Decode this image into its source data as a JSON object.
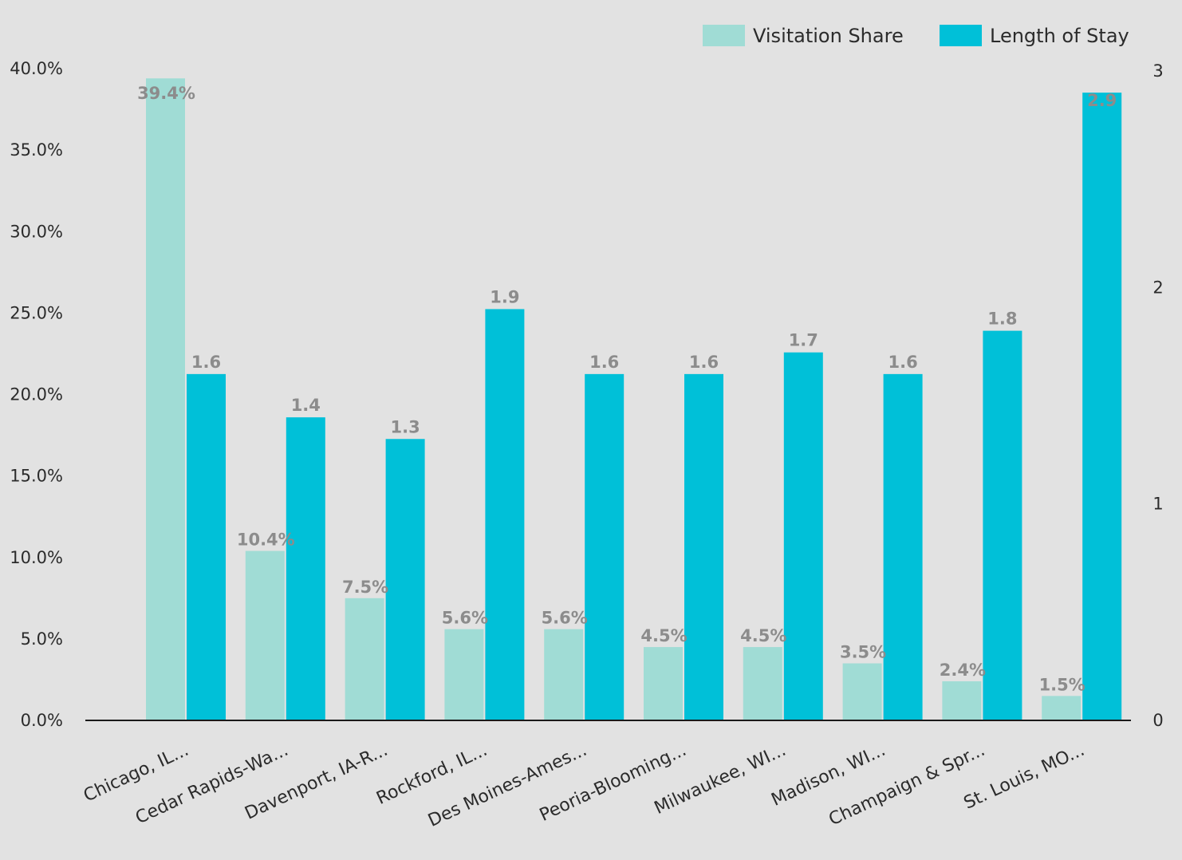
{
  "colors": {
    "background": "#e2e2e2",
    "visitation_share": "#a0dcd5",
    "length_of_stay": "#00c0d8",
    "axis": "#1a1a1a",
    "data_label": "#8c8c8c"
  },
  "chart_data": {
    "type": "bar",
    "title": "",
    "xlabel": "",
    "ylabel": "",
    "categories": [
      "Chicago, IL...",
      "Cedar Rapids-Wa...",
      "Davenport, IA-R...",
      "Rockford, IL...",
      "Des Moines-Ames...",
      "Peoria-Blooming...",
      "Milwaukee, WI...",
      "Madison, WI...",
      "Champaign & Spr...",
      "St. Louis, MO..."
    ],
    "series": [
      {
        "name": "Visitation Share",
        "axis": "left",
        "values": [
          39.4,
          10.4,
          7.5,
          5.6,
          5.6,
          4.5,
          4.5,
          3.5,
          2.4,
          1.5
        ],
        "labels": [
          "39.4%",
          "10.4%",
          "7.5%",
          "5.6%",
          "5.6%",
          "4.5%",
          "4.5%",
          "3.5%",
          "2.4%",
          "1.5%"
        ]
      },
      {
        "name": "Length of Stay",
        "axis": "right",
        "values": [
          1.6,
          1.4,
          1.3,
          1.9,
          1.6,
          1.6,
          1.7,
          1.6,
          1.8,
          2.9
        ],
        "labels": [
          "1.6",
          "1.4",
          "1.3",
          "1.9",
          "1.6",
          "1.6",
          "1.7",
          "1.6",
          "1.8",
          "2.9"
        ]
      }
    ],
    "y_left": {
      "ylim": [
        0,
        40
      ],
      "ticks": [
        0,
        5,
        10,
        15,
        20,
        25,
        30,
        35,
        40
      ],
      "tick_labels": [
        "0.0%",
        "5.0%",
        "10.0%",
        "15.0%",
        "20.0%",
        "25.0%",
        "30.0%",
        "35.0%",
        "40.0%"
      ]
    },
    "y_right": {
      "ylim": [
        0,
        3
      ],
      "ticks": [
        0,
        1,
        2,
        3
      ],
      "tick_labels": [
        "0",
        "1",
        "2",
        "3"
      ]
    },
    "grid": false,
    "legend": {
      "position": "top-right",
      "entries": [
        "Visitation Share",
        "Length of Stay"
      ]
    }
  }
}
